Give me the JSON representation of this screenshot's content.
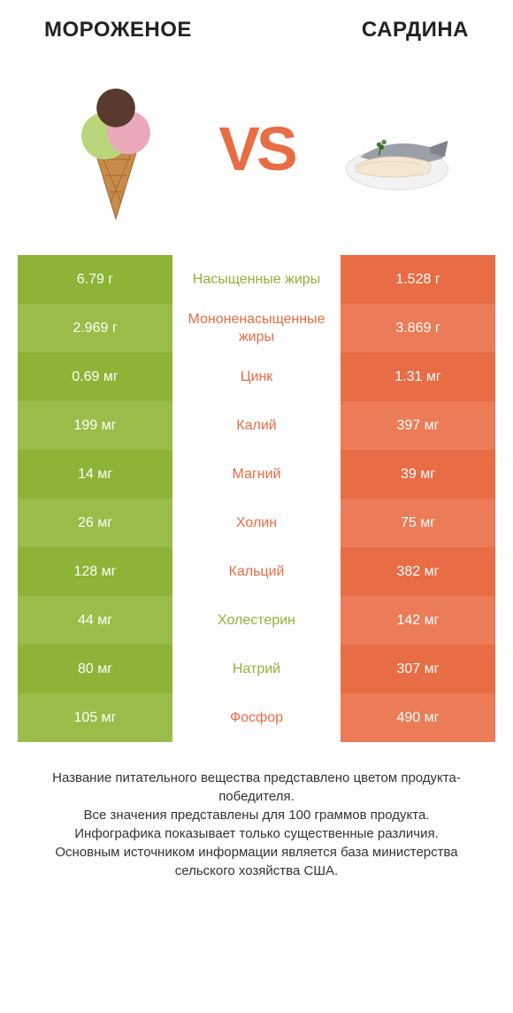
{
  "header": {
    "left": "МОРОЖЕНОЕ",
    "right": "САРДИНА"
  },
  "vs": "VS",
  "colors": {
    "green": "#8db337",
    "green_alt": "#99bd48",
    "orange": "#e86c44",
    "orange_alt": "#eb7c57",
    "green_text": "#8db337",
    "orange_text": "#e86c44",
    "white": "#ffffff"
  },
  "table": {
    "left_bg_a": "#8db337",
    "left_bg_b": "#99bd48",
    "right_bg_a": "#e86c44",
    "right_bg_b": "#eb7c57",
    "rows": [
      {
        "left": "6.79 г",
        "label": "Насыщенные жиры",
        "right": "1.528 г",
        "winner": "left"
      },
      {
        "left": "2.969 г",
        "label": "Мононенасыщенные жиры",
        "right": "3.869 г",
        "winner": "right"
      },
      {
        "left": "0.69 мг",
        "label": "Цинк",
        "right": "1.31 мг",
        "winner": "right"
      },
      {
        "left": "199 мг",
        "label": "Калий",
        "right": "397 мг",
        "winner": "right"
      },
      {
        "left": "14 мг",
        "label": "Магний",
        "right": "39 мг",
        "winner": "right"
      },
      {
        "left": "26 мг",
        "label": "Холин",
        "right": "75 мг",
        "winner": "right"
      },
      {
        "left": "128 мг",
        "label": "Кальций",
        "right": "382 мг",
        "winner": "right"
      },
      {
        "left": "44 мг",
        "label": "Холестерин",
        "right": "142 мг",
        "winner": "left"
      },
      {
        "left": "80 мг",
        "label": "Натрий",
        "right": "307 мг",
        "winner": "left"
      },
      {
        "left": "105 мг",
        "label": "Фосфор",
        "right": "490 мг",
        "winner": "right"
      }
    ]
  },
  "footer": {
    "line1": "Название питательного вещества представлено цветом продукта-победителя.",
    "line2": "Все значения представлены для 100 граммов продукта.",
    "line3": "Инфографика показывает только существенные различия.",
    "line4": "Основным источником информации является база министерства сельского хозяйства США."
  }
}
